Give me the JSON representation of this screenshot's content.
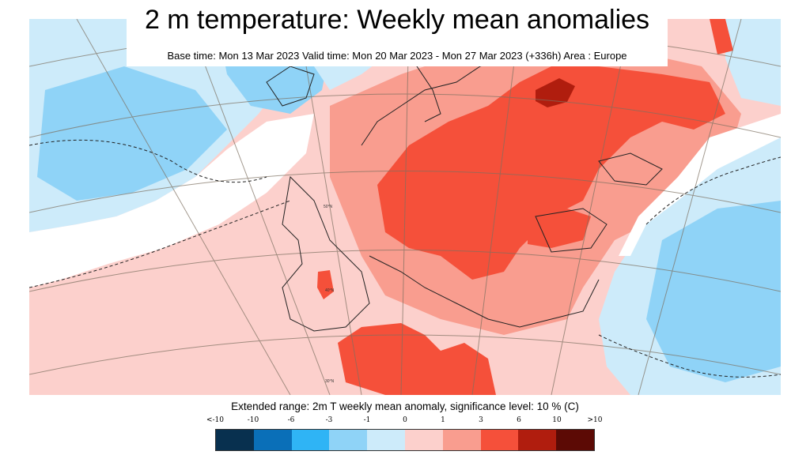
{
  "title": "2 m temperature: Weekly mean anomalies",
  "subtitle": "Base time: Mon 13 Mar 2023 Valid time: Mon 20 Mar 2023 - Mon 27 Mar 2023 (+336h) Area : Europe",
  "caption": "Extended range: 2m T weekly mean anomaly, significance level: 10 % (C)",
  "map": {
    "region": "Europe",
    "graticule_labels": [
      "50°N",
      "40°N",
      "30°N"
    ]
  },
  "legend": {
    "tick_labels": [
      "<-10",
      "-10",
      "-6",
      "-3",
      "-1",
      "0",
      "1",
      "3",
      "6",
      "10",
      ">10"
    ],
    "colors": [
      "#08304f",
      "#0a6fb8",
      "#2fb4f5",
      "#8fd3f7",
      "#cdebfa",
      "#fcd0cc",
      "#f99d8f",
      "#f5503a",
      "#b01d0e",
      "#5c0a05"
    ]
  },
  "palette": {
    "strong_cold": "#8fd3f7",
    "weak_cold": "#cdebfa",
    "neutral": "#ffffff",
    "weak_warm": "#fcd0cc",
    "moderate_warm": "#f99d8f",
    "strong_warm": "#f5503a",
    "very_strong_warm": "#b01d0e"
  }
}
